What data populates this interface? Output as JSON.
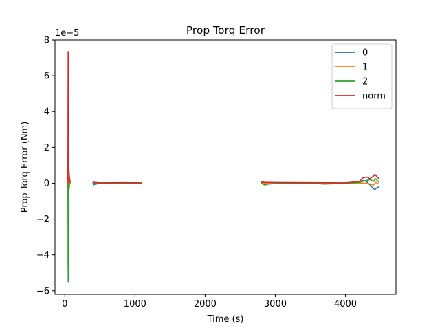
{
  "chart_data": {
    "type": "line",
    "title": "Prop Torq Error",
    "xlabel": "Time (s)",
    "ylabel": "Prop Torq Error (Nm)",
    "y_scale_label": "1e−5",
    "y_scale": 1e-05,
    "xlim": [
      -140,
      4720
    ],
    "ylim": [
      -6.2,
      8.0
    ],
    "x_ticks": [
      0,
      1000,
      2000,
      3000,
      4000
    ],
    "x_tick_labels": [
      "0",
      "1000",
      "2000",
      "3000",
      "4000"
    ],
    "y_ticks": [
      -6,
      -4,
      -2,
      0,
      2,
      4,
      6,
      8
    ],
    "y_tick_labels": [
      "−6",
      "−4",
      "−2",
      "0",
      "2",
      "4",
      "6",
      "8"
    ],
    "grid": false,
    "legend_position": "top-right",
    "series": [
      {
        "name": "0",
        "color": "#1f77b4",
        "segments": [
          [
            [
              45,
              0.0
            ],
            [
              48,
              1.5
            ],
            [
              50,
              -3.0
            ],
            [
              52,
              2.5
            ],
            [
              55,
              -1.5
            ],
            [
              58,
              0.8
            ],
            [
              62,
              -0.3
            ],
            [
              70,
              0.1
            ],
            [
              80,
              0.0
            ]
          ],
          [
            [
              400,
              0.05
            ],
            [
              410,
              -0.1
            ],
            [
              420,
              0.0
            ],
            [
              500,
              0.02
            ],
            [
              700,
              -0.02
            ],
            [
              900,
              0.0
            ],
            [
              1100,
              0.0
            ]
          ],
          [
            [
              2800,
              0.05
            ],
            [
              2850,
              -0.05
            ],
            [
              3000,
              0.0
            ],
            [
              3500,
              0.0
            ],
            [
              4000,
              0.0
            ],
            [
              4200,
              0.05
            ],
            [
              4250,
              0.15
            ],
            [
              4300,
              0.1
            ],
            [
              4350,
              -0.1
            ],
            [
              4400,
              -0.3
            ],
            [
              4420,
              -0.35
            ],
            [
              4450,
              -0.25
            ],
            [
              4480,
              -0.2
            ]
          ]
        ]
      },
      {
        "name": "1",
        "color": "#ff7f0e",
        "segments": [
          [
            [
              45,
              0.0
            ],
            [
              48,
              2.0
            ],
            [
              50,
              -2.0
            ],
            [
              53,
              1.8
            ],
            [
              56,
              -1.0
            ],
            [
              60,
              0.5
            ],
            [
              65,
              -0.2
            ],
            [
              75,
              0.1
            ],
            [
              80,
              0.0
            ]
          ],
          [
            [
              400,
              0.0
            ],
            [
              410,
              0.05
            ],
            [
              500,
              0.0
            ],
            [
              800,
              0.01
            ],
            [
              1100,
              0.0
            ]
          ],
          [
            [
              2800,
              0.0
            ],
            [
              3000,
              0.0
            ],
            [
              3500,
              0.02
            ],
            [
              4000,
              0.0
            ],
            [
              4200,
              0.0
            ],
            [
              4300,
              0.0
            ],
            [
              4350,
              -0.05
            ],
            [
              4400,
              -0.1
            ],
            [
              4430,
              0.05
            ],
            [
              4480,
              -0.05
            ]
          ]
        ]
      },
      {
        "name": "2",
        "color": "#2ca02c",
        "segments": [
          [
            [
              45,
              0.0
            ],
            [
              47,
              -4.5
            ],
            [
              49,
              -5.5
            ],
            [
              51,
              -3.0
            ],
            [
              53,
              -1.5
            ],
            [
              56,
              -0.5
            ],
            [
              60,
              -0.1
            ],
            [
              70,
              0.0
            ],
            [
              80,
              0.0
            ]
          ],
          [
            [
              400,
              0.0
            ],
            [
              410,
              -0.08
            ],
            [
              500,
              0.0
            ],
            [
              800,
              0.0
            ],
            [
              1100,
              0.0
            ]
          ],
          [
            [
              2800,
              0.0
            ],
            [
              2850,
              -0.1
            ],
            [
              2900,
              -0.05
            ],
            [
              3000,
              -0.02
            ],
            [
              3500,
              0.0
            ],
            [
              3700,
              -0.05
            ],
            [
              4000,
              0.0
            ],
            [
              4200,
              0.05
            ],
            [
              4300,
              0.15
            ],
            [
              4350,
              0.2
            ],
            [
              4400,
              0.1
            ],
            [
              4430,
              0.25
            ],
            [
              4480,
              0.05
            ]
          ]
        ]
      },
      {
        "name": "norm",
        "color": "#d62728",
        "segments": [
          [
            [
              45,
              0.0
            ],
            [
              46,
              4.0
            ],
            [
              48,
              7.35
            ],
            [
              50,
              5.0
            ],
            [
              52,
              3.0
            ],
            [
              55,
              1.5
            ],
            [
              60,
              0.6
            ],
            [
              70,
              0.2
            ],
            [
              80,
              0.05
            ]
          ],
          [
            [
              400,
              0.1
            ],
            [
              410,
              0.05
            ],
            [
              500,
              0.02
            ],
            [
              800,
              0.03
            ],
            [
              1100,
              0.02
            ]
          ],
          [
            [
              2800,
              0.08
            ],
            [
              2850,
              0.05
            ],
            [
              3000,
              0.04
            ],
            [
              3500,
              0.03
            ],
            [
              4000,
              0.02
            ],
            [
              4200,
              0.1
            ],
            [
              4250,
              0.3
            ],
            [
              4300,
              0.35
            ],
            [
              4350,
              0.25
            ],
            [
              4400,
              0.4
            ],
            [
              4420,
              0.5
            ],
            [
              4450,
              0.35
            ],
            [
              4480,
              0.25
            ]
          ]
        ]
      }
    ]
  }
}
